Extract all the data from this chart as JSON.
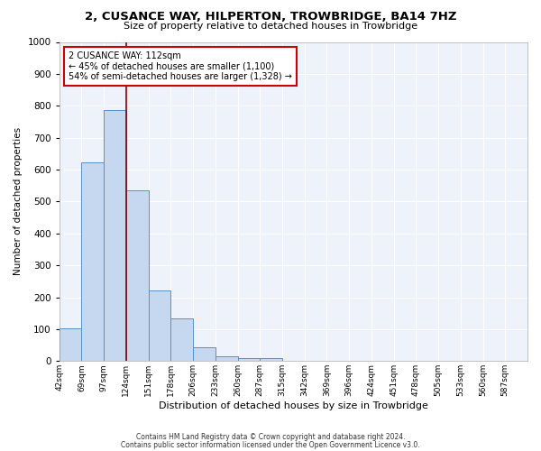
{
  "title": "2, CUSANCE WAY, HILPERTON, TROWBRIDGE, BA14 7HZ",
  "subtitle": "Size of property relative to detached houses in Trowbridge",
  "xlabel": "Distribution of detached houses by size in Trowbridge",
  "ylabel": "Number of detached properties",
  "bar_color": "#c5d8f0",
  "bar_edge_color": "#5b8fc9",
  "background_color": "#eef2fb",
  "grid_color": "#ffffff",
  "bin_labels": [
    "42sqm",
    "69sqm",
    "97sqm",
    "124sqm",
    "151sqm",
    "178sqm",
    "206sqm",
    "233sqm",
    "260sqm",
    "287sqm",
    "315sqm",
    "342sqm",
    "369sqm",
    "396sqm",
    "424sqm",
    "451sqm",
    "478sqm",
    "505sqm",
    "533sqm",
    "560sqm",
    "587sqm"
  ],
  "bar_values": [
    102,
    622,
    787,
    535,
    220,
    133,
    42,
    15,
    10,
    10,
    0,
    0,
    0,
    0,
    0,
    0,
    0,
    0,
    0,
    0,
    0
  ],
  "ylim": [
    0,
    1000
  ],
  "yticks": [
    0,
    100,
    200,
    300,
    400,
    500,
    600,
    700,
    800,
    900,
    1000
  ],
  "vline_color": "#8b0000",
  "annotation_line1": "2 CUSANCE WAY: 112sqm",
  "annotation_line2": "← 45% of detached houses are smaller (1,100)",
  "annotation_line3": "54% of semi-detached houses are larger (1,328) →",
  "annotation_box_color": "#ffffff",
  "annotation_box_edge_color": "#cc0000",
  "footer1": "Contains HM Land Registry data © Crown copyright and database right 2024.",
  "footer2": "Contains public sector information licensed under the Open Government Licence v3.0."
}
